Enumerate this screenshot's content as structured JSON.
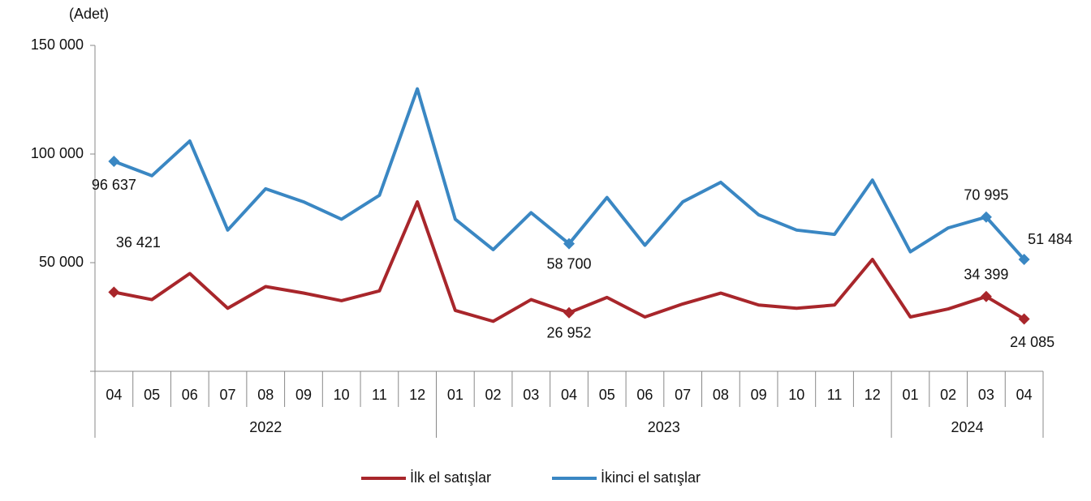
{
  "chart_data": {
    "type": "line",
    "y_label": "(Adet)",
    "category_groups": [
      {
        "label": "2022",
        "categories": [
          "04",
          "05",
          "06",
          "07",
          "08",
          "09",
          "10",
          "11",
          "12"
        ]
      },
      {
        "label": "2023",
        "categories": [
          "01",
          "02",
          "03",
          "04",
          "05",
          "06",
          "07",
          "08",
          "09",
          "10",
          "11",
          "12"
        ]
      },
      {
        "label": "2024",
        "categories": [
          "01",
          "02",
          "03",
          "04"
        ]
      }
    ],
    "series": [
      {
        "name": "İlk el satışlar",
        "color": "#a8262b",
        "values": [
          36421,
          33000,
          45000,
          29000,
          39000,
          36000,
          32500,
          37000,
          78000,
          28000,
          23000,
          33000,
          26952,
          34000,
          25000,
          31000,
          36000,
          30500,
          29000,
          30500,
          51500,
          25000,
          28700,
          34399,
          24085
        ],
        "value_labels": [
          "36 421",
          null,
          null,
          null,
          null,
          null,
          null,
          null,
          null,
          null,
          null,
          null,
          "26 952",
          null,
          null,
          null,
          null,
          null,
          null,
          null,
          null,
          null,
          null,
          "34 399",
          "24 085"
        ]
      },
      {
        "name": "İkinci el satışlar",
        "color": "#3a87c3",
        "values": [
          96637,
          90000,
          106000,
          65000,
          84000,
          78000,
          70000,
          81000,
          130000,
          70000,
          56000,
          73000,
          58700,
          80000,
          58000,
          78000,
          87000,
          72000,
          65000,
          63000,
          88000,
          55000,
          66000,
          70995,
          51484
        ],
        "value_labels": [
          "96 637",
          null,
          null,
          null,
          null,
          null,
          null,
          null,
          null,
          null,
          null,
          null,
          "58 700",
          null,
          null,
          null,
          null,
          null,
          null,
          null,
          null,
          null,
          null,
          "70 995",
          "51 484"
        ]
      }
    ],
    "ylim": [
      0,
      150000
    ],
    "yticks": [
      {
        "value": 50000,
        "label": "50 000"
      },
      {
        "value": 100000,
        "label": "100 000"
      },
      {
        "value": 150000,
        "label": "150 000"
      }
    ],
    "legend": "bottom"
  }
}
